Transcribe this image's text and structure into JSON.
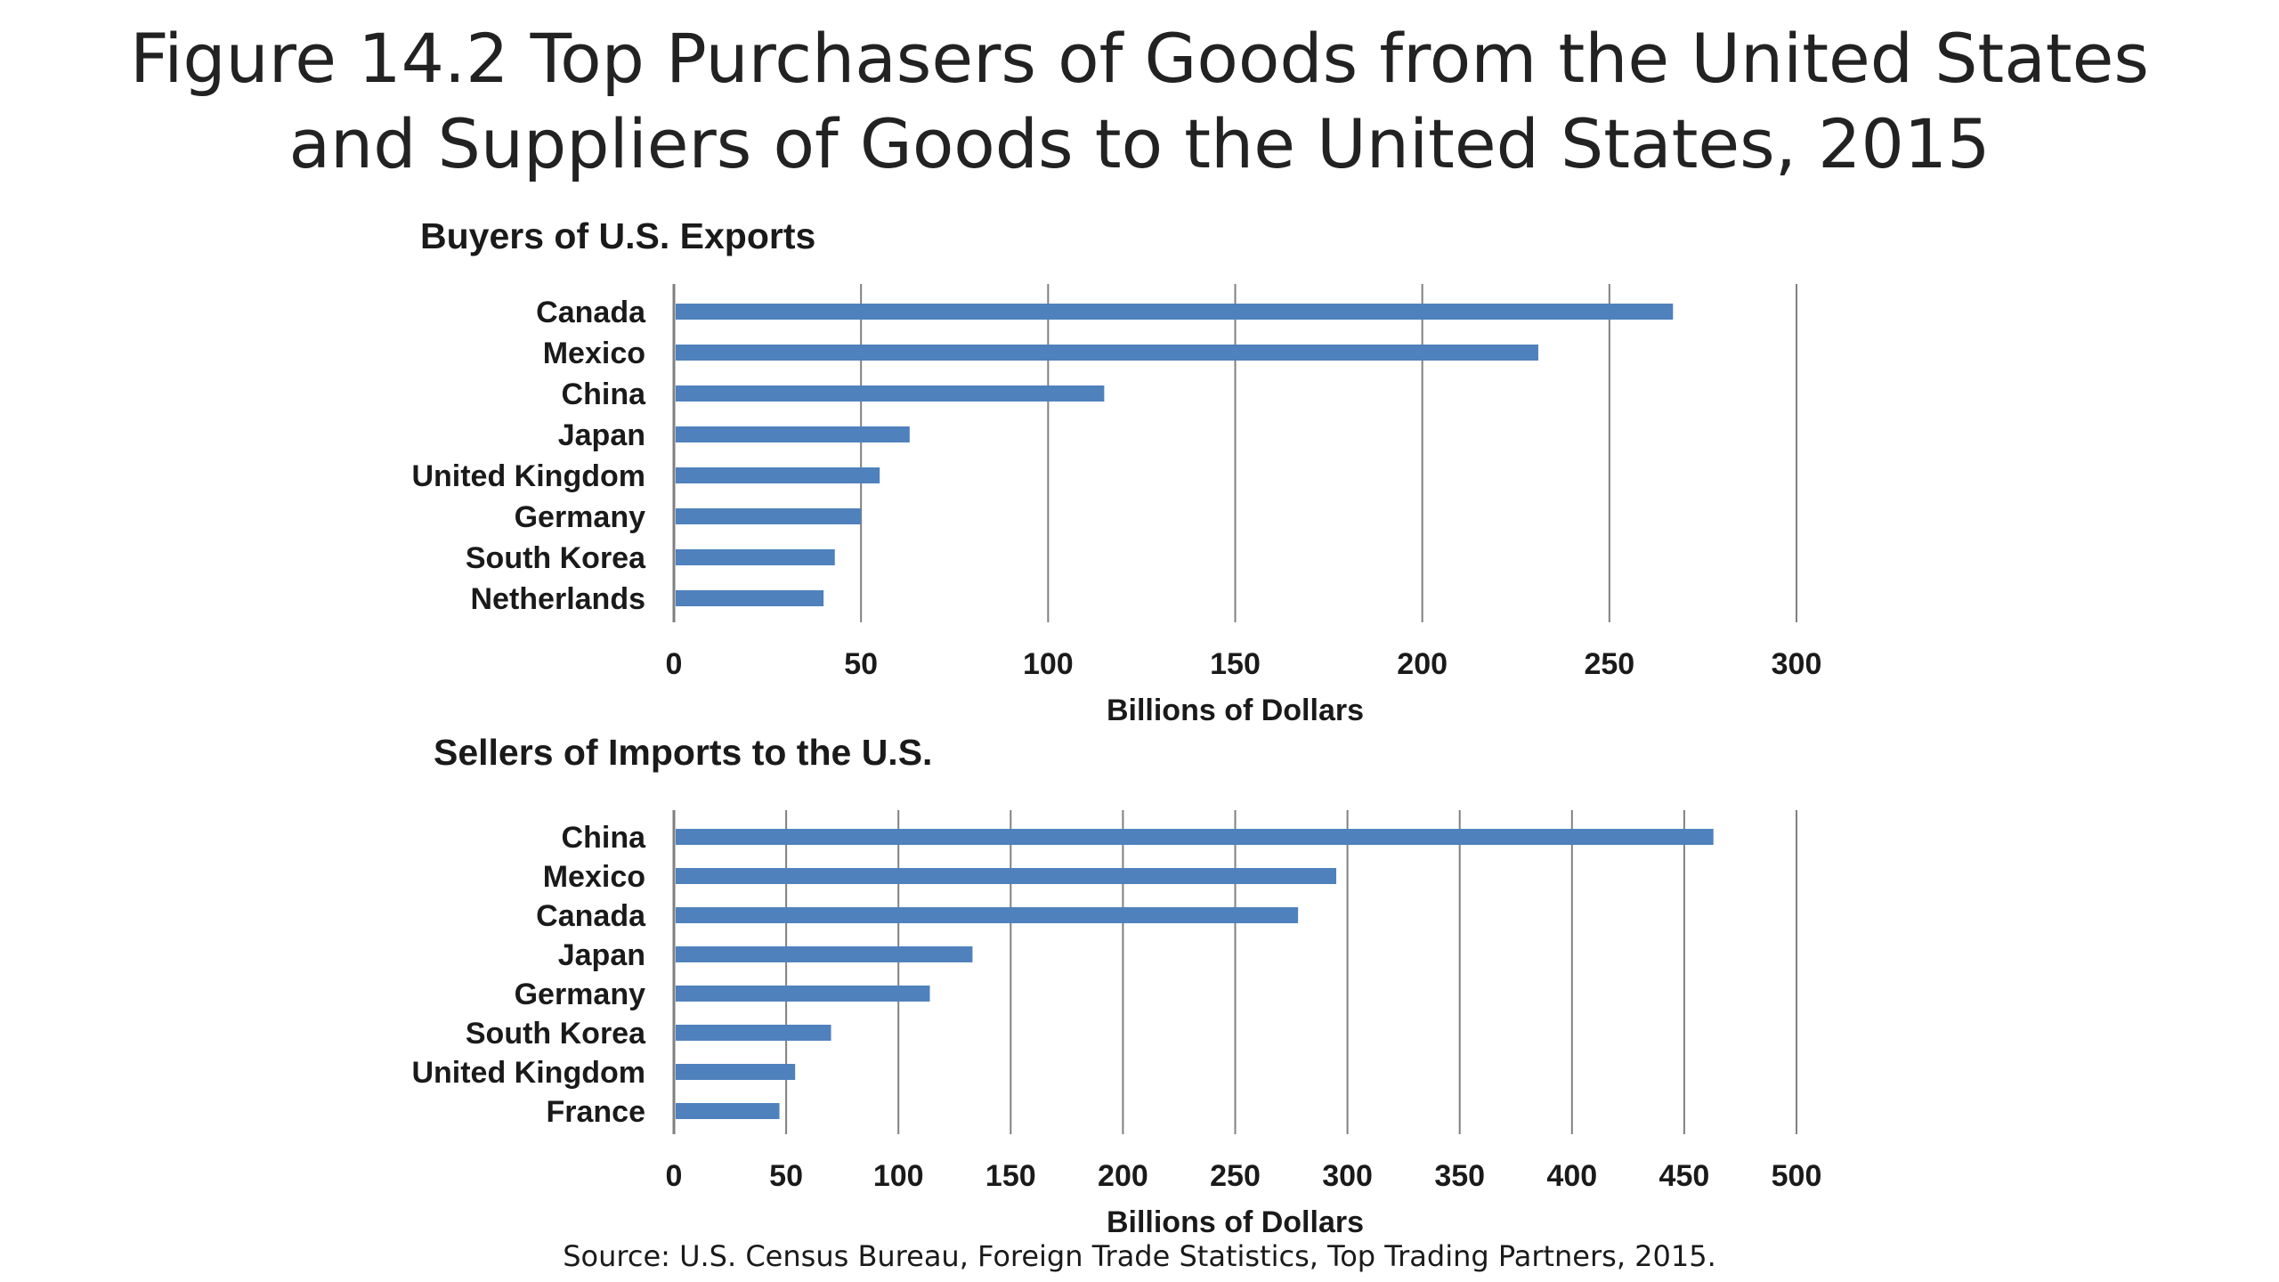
{
  "title": {
    "line1": "Figure 14.2 Top Purchasers of Goods from the United States",
    "line2": "and Suppliers of Goods to the United States, 2015"
  },
  "source": "Source: U.S. Census Bureau, Foreign Trade Statistics, Top Trading Partners, 2015.",
  "colors": {
    "bar": "#4f81bd",
    "grid": "#808080",
    "axis": "#7f7f7f"
  },
  "chart_data": [
    {
      "type": "bar",
      "orientation": "horizontal",
      "title": "Buyers of U.S. Exports",
      "categories": [
        "Canada",
        "Mexico",
        "China",
        "Japan",
        "United Kingdom",
        "Germany",
        "South Korea",
        "Netherlands"
      ],
      "values": [
        267,
        231,
        115,
        63,
        55,
        50,
        43,
        40
      ],
      "xlabel": "Billions of Dollars",
      "ylabel": "",
      "xlim": [
        0,
        300
      ],
      "ticks": [
        0,
        50,
        100,
        150,
        200,
        250,
        300
      ],
      "grid": true
    },
    {
      "type": "bar",
      "orientation": "horizontal",
      "title": "Sellers of Imports to the U.S.",
      "categories": [
        "China",
        "Mexico",
        "Canada",
        "Japan",
        "Germany",
        "South Korea",
        "United Kingdom",
        "France"
      ],
      "values": [
        463,
        295,
        278,
        133,
        114,
        70,
        54,
        47
      ],
      "xlabel": "Billions of Dollars",
      "ylabel": "",
      "xlim": [
        0,
        500
      ],
      "ticks": [
        0,
        50,
        100,
        150,
        200,
        250,
        300,
        350,
        400,
        450,
        500
      ],
      "grid": true
    }
  ]
}
